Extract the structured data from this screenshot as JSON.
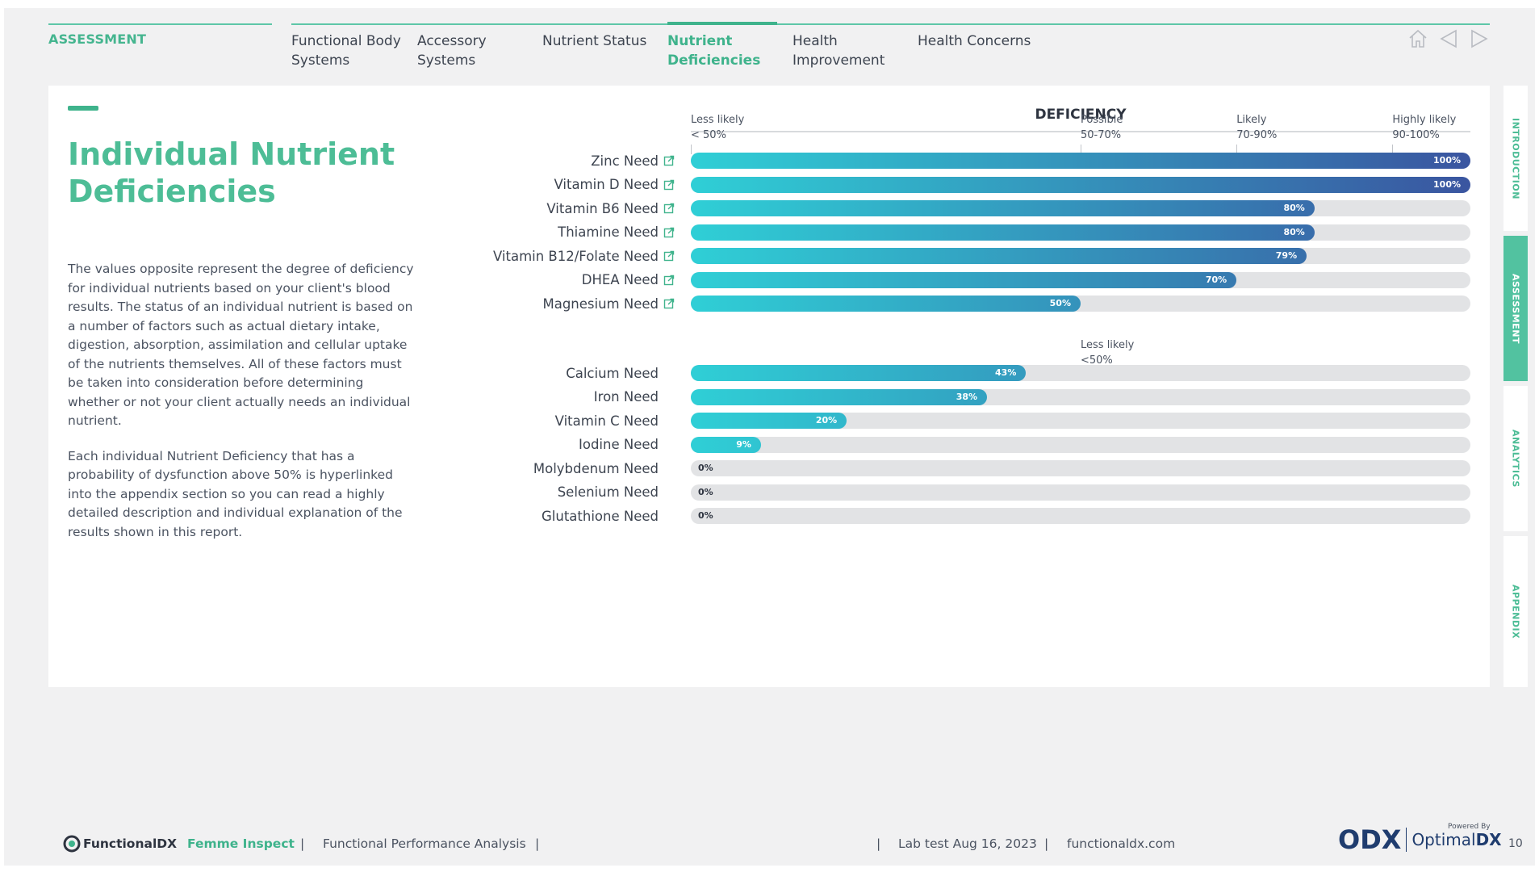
{
  "nav": {
    "section": "ASSESSMENT",
    "tabs": [
      {
        "label": "Functional Body Systems",
        "line1": "Functional Body",
        "line2": "Systems"
      },
      {
        "label": "Accessory Systems",
        "line1": "Accessory",
        "line2": "Systems"
      },
      {
        "label": "Nutrient Status",
        "line1": "Nutrient Status",
        "line2": ""
      },
      {
        "label": "Nutrient Deficiencies",
        "line1": "Nutrient",
        "line2": "Deficiencies"
      },
      {
        "label": "Health Improvement",
        "line1": "Health",
        "line2": "Improvement"
      },
      {
        "label": "Health Concerns",
        "line1": "Health Concerns",
        "line2": ""
      }
    ],
    "icons": [
      "home-icon",
      "back-icon",
      "forward-icon"
    ]
  },
  "main": {
    "title_line1": "Individual Nutrient",
    "title_line2": "Deficiencies",
    "para1": "The values opposite represent the degree of deficiency for individual nutrients based on your client's blood results. The status of an individual nutrient is based on a number of factors such as actual dietary intake, digestion, absorption, assimilation and cellular uptake of the nutrients themselves. All of these factors must be taken into consideration before determining whether or not your client actually needs an individual nutrient.",
    "para2": "Each individual Nutrient Deficiency that has a probability of dysfunction above 50% is hyperlinked into the appendix section so you can read a highly detailed description and individual explanation of the results shown in this report."
  },
  "chart_data": {
    "type": "bar",
    "title": "DEFICIENCY",
    "thresholds": [
      {
        "label": "Less likely",
        "range": "< 50%"
      },
      {
        "label": "Possible",
        "range": "50-70%"
      },
      {
        "label": "Likely",
        "range": "70-90%"
      },
      {
        "label": "Highly likely",
        "range": "90-100%"
      },
      {
        "label": "Less likely",
        "range": "<50%"
      }
    ],
    "xlim": [
      0,
      100
    ],
    "categories": [
      "Zinc Need",
      "Vitamin D Need",
      "Vitamin B6 Need",
      "Thiamine Need",
      "Vitamin B12/Folate Need",
      "DHEA Need",
      "Magnesium Need",
      "Calcium Need",
      "Iron Need",
      "Vitamin C Need",
      "Iodine Need",
      "Molybdenum Need",
      "Selenium Need",
      "Glutathione Need"
    ],
    "values": [
      100,
      100,
      80,
      80,
      79,
      70,
      50,
      43,
      38,
      20,
      9,
      0,
      0,
      0
    ],
    "value_labels": [
      "100%",
      "100%",
      "80%",
      "80%",
      "79%",
      "70%",
      "50%",
      "43%",
      "38%",
      "20%",
      "9%",
      "0%",
      "0%",
      "0%"
    ],
    "hyperlinked": [
      true,
      true,
      true,
      true,
      true,
      true,
      true,
      false,
      false,
      false,
      false,
      false,
      false,
      false
    ],
    "colors": {
      "start": "#2fcfd6",
      "end": "#3a55a0",
      "track": "#e2e3e5"
    }
  },
  "side_tabs": [
    {
      "label": "INTRODUCTION",
      "active": false
    },
    {
      "label": "ASSESSMENT",
      "active": true
    },
    {
      "label": "ANALYTICS",
      "active": false
    },
    {
      "label": "APPENDIX",
      "active": false
    }
  ],
  "footer": {
    "brand": "FunctionalDX",
    "product": "Femme Inspect",
    "report": "Functional Performance Analysis",
    "lab_test": "Lab test Aug 16, 2023",
    "website": "functionaldx.com",
    "powered_by": "Powered By",
    "odx": "ODX",
    "optimal_prefix": "Optimal",
    "optimal_suffix": "DX",
    "page": "10",
    "sep": "|"
  }
}
